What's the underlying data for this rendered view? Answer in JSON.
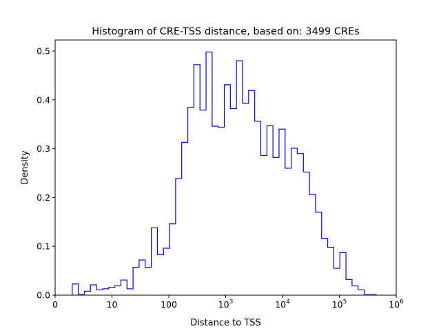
{
  "chart_data": {
    "type": "histogram",
    "title": "Histogram of CRE-TSS distance, based on: 3499 CREs",
    "xlabel": "Distance to TSS",
    "ylabel": "Density",
    "xscale": "log",
    "xlim_log10": [
      0,
      6
    ],
    "ylim": [
      0,
      0.52
    ],
    "x_ticks": [
      {
        "log10": 0,
        "base": "0",
        "exp": ""
      },
      {
        "log10": 1,
        "base": "10",
        "exp": ""
      },
      {
        "log10": 2,
        "base": "100",
        "exp": ""
      },
      {
        "log10": 3,
        "base": "10",
        "exp": "3"
      },
      {
        "log10": 4,
        "base": "10",
        "exp": "4"
      },
      {
        "log10": 5,
        "base": "10",
        "exp": "5"
      },
      {
        "log10": 6,
        "base": "10",
        "exp": "6"
      }
    ],
    "y_ticks": [
      "0.0",
      "0.1",
      "0.2",
      "0.3",
      "0.4",
      "0.5"
    ],
    "y_tick_values": [
      0,
      0.1,
      0.2,
      0.3,
      0.4,
      0.5
    ],
    "bin_start_log10": 0.301,
    "bin_width_log10": 0.107,
    "densities": [
      0.023,
      0.002,
      0.008,
      0.021,
      0.011,
      0.013,
      0.016,
      0.019,
      0.031,
      0.013,
      0.057,
      0.072,
      0.057,
      0.138,
      0.083,
      0.096,
      0.146,
      0.239,
      0.313,
      0.385,
      0.472,
      0.379,
      0.498,
      0.346,
      0.344,
      0.431,
      0.382,
      0.48,
      0.393,
      0.419,
      0.356,
      0.286,
      0.347,
      0.282,
      0.34,
      0.26,
      0.301,
      0.29,
      0.252,
      0.206,
      0.17,
      0.116,
      0.098,
      0.055,
      0.087,
      0.032,
      0.019,
      0.011,
      0.001,
      0.001
    ],
    "line_color": "#0000ff",
    "histtype": "step"
  }
}
